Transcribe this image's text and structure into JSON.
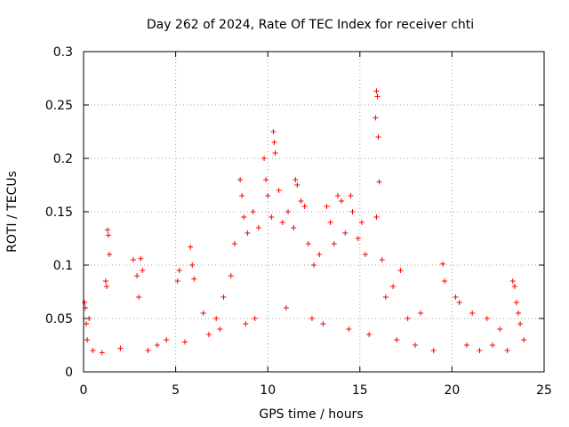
{
  "chart_data": {
    "type": "scatter",
    "title": "Day 262 of 2024, Rate Of TEC Index for receiver chti",
    "xlabel": "GPS time / hours",
    "ylabel": "ROTI / TECUs",
    "xlim": [
      0,
      25
    ],
    "ylim": [
      0,
      0.3
    ],
    "xticks": [
      0,
      5,
      10,
      15,
      20,
      25
    ],
    "xtick_labels": [
      "0",
      "5",
      "10",
      "15",
      "20",
      "25"
    ],
    "yticks": [
      0,
      0.05,
      0.1,
      0.15,
      0.2,
      0.25,
      0.3
    ],
    "ytick_labels": [
      "0",
      "0.05",
      "0.1",
      "0.15",
      "0.2",
      "0.25",
      "0.3"
    ],
    "grid": true,
    "marker": "+",
    "color": "#ff0000",
    "series": [
      {
        "name": "ROTI",
        "points": [
          [
            0.05,
            0.065
          ],
          [
            0.1,
            0.06
          ],
          [
            0.15,
            0.045
          ],
          [
            0.2,
            0.03
          ],
          [
            0.3,
            0.05
          ],
          [
            1.3,
            0.133
          ],
          [
            1.35,
            0.128
          ],
          [
            1.4,
            0.11
          ],
          [
            1.2,
            0.085
          ],
          [
            1.25,
            0.08
          ],
          [
            2.7,
            0.105
          ],
          [
            2.9,
            0.09
          ],
          [
            3.1,
            0.106
          ],
          [
            3.2,
            0.095
          ],
          [
            3.0,
            0.07
          ],
          [
            5.2,
            0.095
          ],
          [
            5.1,
            0.085
          ],
          [
            5.8,
            0.117
          ],
          [
            5.9,
            0.1
          ],
          [
            6.0,
            0.087
          ],
          [
            6.5,
            0.055
          ],
          [
            7.2,
            0.05
          ],
          [
            7.6,
            0.07
          ],
          [
            8.0,
            0.09
          ],
          [
            8.2,
            0.12
          ],
          [
            8.5,
            0.18
          ],
          [
            8.6,
            0.165
          ],
          [
            8.7,
            0.145
          ],
          [
            8.9,
            0.13
          ],
          [
            9.2,
            0.15
          ],
          [
            9.5,
            0.135
          ],
          [
            9.8,
            0.2
          ],
          [
            9.9,
            0.18
          ],
          [
            10.0,
            0.165
          ],
          [
            10.2,
            0.145
          ],
          [
            10.3,
            0.225
          ],
          [
            10.35,
            0.215
          ],
          [
            10.4,
            0.205
          ],
          [
            10.6,
            0.17
          ],
          [
            10.8,
            0.14
          ],
          [
            11.1,
            0.15
          ],
          [
            11.4,
            0.135
          ],
          [
            11.5,
            0.18
          ],
          [
            11.6,
            0.175
          ],
          [
            11.8,
            0.16
          ],
          [
            12.0,
            0.155
          ],
          [
            12.2,
            0.12
          ],
          [
            12.5,
            0.1
          ],
          [
            12.8,
            0.11
          ],
          [
            13.2,
            0.155
          ],
          [
            13.4,
            0.14
          ],
          [
            13.6,
            0.12
          ],
          [
            13.8,
            0.165
          ],
          [
            14.0,
            0.16
          ],
          [
            14.2,
            0.13
          ],
          [
            14.5,
            0.165
          ],
          [
            14.6,
            0.15
          ],
          [
            14.9,
            0.125
          ],
          [
            15.1,
            0.14
          ],
          [
            15.3,
            0.11
          ],
          [
            15.9,
            0.263
          ],
          [
            15.95,
            0.258
          ],
          [
            15.85,
            0.238
          ],
          [
            16.0,
            0.22
          ],
          [
            16.05,
            0.178
          ],
          [
            15.9,
            0.145
          ],
          [
            16.2,
            0.105
          ],
          [
            16.4,
            0.07
          ],
          [
            16.8,
            0.08
          ],
          [
            17.2,
            0.095
          ],
          [
            17.6,
            0.05
          ],
          [
            18.3,
            0.055
          ],
          [
            19.5,
            0.101
          ],
          [
            19.6,
            0.085
          ],
          [
            20.2,
            0.07
          ],
          [
            20.4,
            0.065
          ],
          [
            21.1,
            0.055
          ],
          [
            21.9,
            0.05
          ],
          [
            22.6,
            0.04
          ],
          [
            23.3,
            0.085
          ],
          [
            23.4,
            0.08
          ],
          [
            23.5,
            0.065
          ],
          [
            23.6,
            0.055
          ],
          [
            23.7,
            0.045
          ],
          [
            23.9,
            0.03
          ],
          [
            0.5,
            0.02
          ],
          [
            1.0,
            0.018
          ],
          [
            2.0,
            0.022
          ],
          [
            3.5,
            0.02
          ],
          [
            4.0,
            0.025
          ],
          [
            4.5,
            0.03
          ],
          [
            5.5,
            0.028
          ],
          [
            6.8,
            0.035
          ],
          [
            7.4,
            0.04
          ],
          [
            8.8,
            0.045
          ],
          [
            9.3,
            0.05
          ],
          [
            11.0,
            0.06
          ],
          [
            12.4,
            0.05
          ],
          [
            13.0,
            0.045
          ],
          [
            14.4,
            0.04
          ],
          [
            15.5,
            0.035
          ],
          [
            17.0,
            0.03
          ],
          [
            18.0,
            0.025
          ],
          [
            19.0,
            0.02
          ],
          [
            20.8,
            0.025
          ],
          [
            21.5,
            0.02
          ],
          [
            22.2,
            0.025
          ],
          [
            23.0,
            0.02
          ]
        ]
      }
    ]
  }
}
